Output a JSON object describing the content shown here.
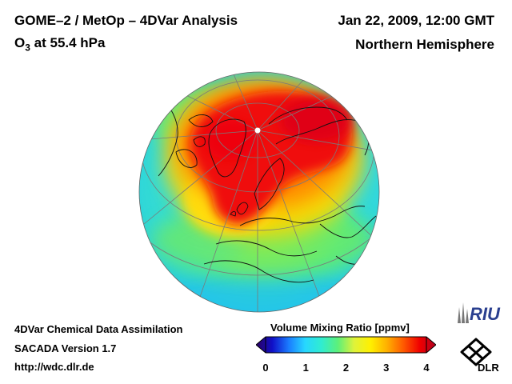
{
  "header": {
    "title": "GOME–2 / MetOp – 4DVar Analysis",
    "species": "O",
    "species_sub": "3",
    "level": " at 55.4 hPa",
    "date": "Jan 22, 2009, 12:00 GMT",
    "region": "Northern Hemisphere"
  },
  "footer": {
    "line1": "4DVar Chemical Data Assimilation",
    "line2": "SACADA Version 1.7",
    "line3": "http://wdc.dlr.de"
  },
  "colorbar": {
    "title": "Volume Mixing Ratio [ppmv]",
    "min": 0,
    "max": 4,
    "ticks": [
      "0",
      "1",
      "2",
      "3",
      "4"
    ],
    "colors": [
      "#2b0060",
      "#1010c8",
      "#1a7cff",
      "#27d7ff",
      "#30ecd0",
      "#5cf07a",
      "#dff23a",
      "#fff000",
      "#ffb000",
      "#ff5a00",
      "#f00000",
      "#b00020"
    ]
  },
  "logos": {
    "riu": "RIU",
    "dlr": "DLR"
  },
  "icons": [
    "globe-map-icon",
    "riu-logo-icon",
    "dlr-logo-icon"
  ]
}
